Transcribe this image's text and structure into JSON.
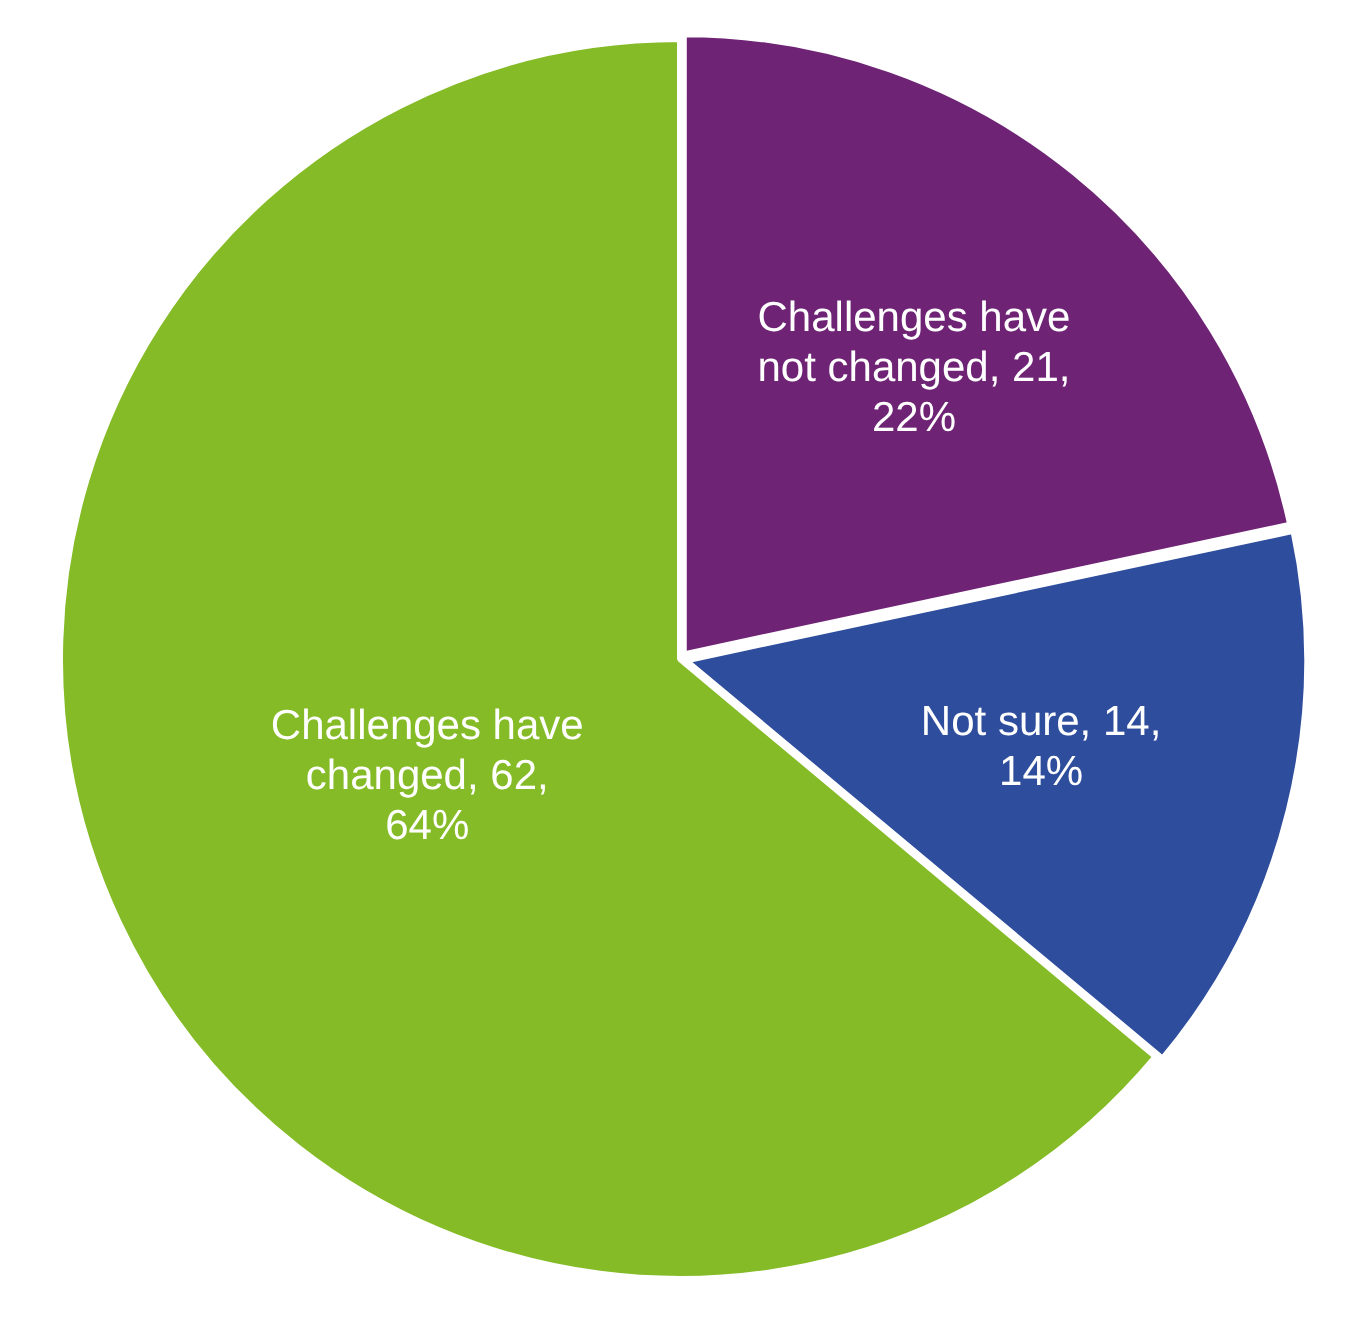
{
  "chart_data": {
    "type": "pie",
    "categories": [
      "Challenges have not changed",
      "Not sure",
      "Challenges have changed"
    ],
    "values": [
      21,
      14,
      62
    ],
    "colors": [
      "#6e2375",
      "#2e4d9c",
      "#84bb26"
    ],
    "value_labels": [
      "21, 22%",
      "14, 14%",
      "62, 64%"
    ],
    "legend": false
  }
}
